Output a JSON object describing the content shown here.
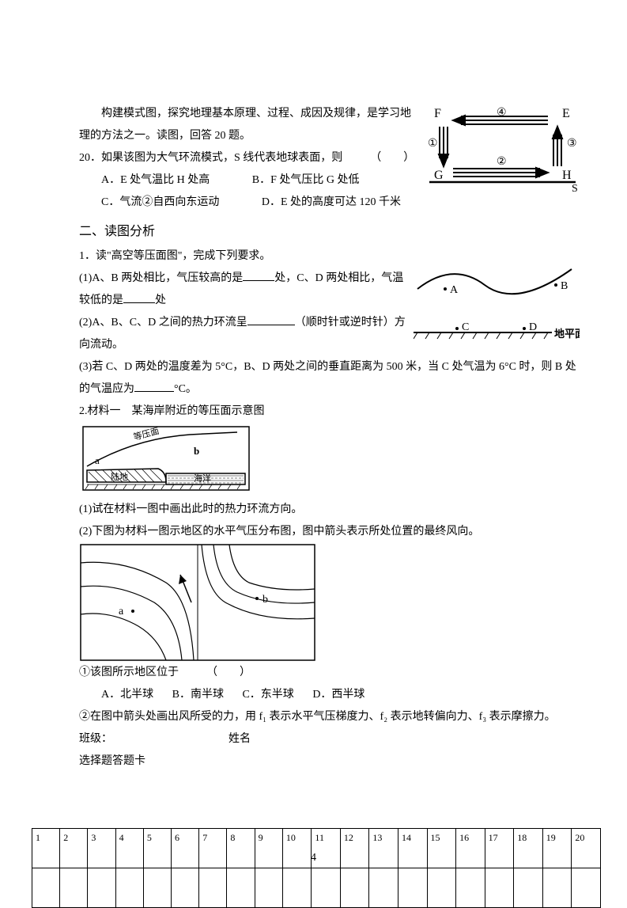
{
  "intro": "构建模式图，探究地理基本原理、过程、成因及规律，是学习地理的方法之一。读图，回答 20 题。",
  "q20": {
    "stem": "20．如果该图为大气环流模式，S 线代表地球表面，则",
    "paren": "（　　）",
    "A": "A．E 处气温比 H 处高",
    "B": "B．F 处气压比 G 处低",
    "C": "C．气流②自西向东运动",
    "D": "D．E 处的高度可达 120 千米"
  },
  "sec2_title": "二、读图分析",
  "p1": {
    "stem": "1．读\"高空等压面图\"，完成下列要求。",
    "l1a": "(1)A、B 两处相比，气压较高的是",
    "l1b": "处，C、D 两处相比，气温较低的是",
    "l1c": "处",
    "l2a": "(2)A、B、C、D 之间的热力环流呈",
    "l2b": "（顺时针或逆时针）方向流动。",
    "l3a": "(3)若 C、D 两处的温度差为 5°C，B、D 两处之间的垂直距离为 500 米，当 C 处气温为 6°C 时，则 B 处的气温应为",
    "l3b": "°C。"
  },
  "p2": {
    "title": "2.材料一　某海岸附近的等压面示意图",
    "q1": "(1)试在材料一图中画出此时的热力环流方向。",
    "q2": "(2)下图为材料一图示地区的水平气压分布图，图中箭头表示所处位置的最终风向。",
    "mc_stem": "①该图所示地区位于",
    "mc_paren": "（　　）",
    "A": "A．北半球",
    "B": "B．南半球",
    "C": "C．东半球",
    "D": "D．西半球",
    "draw": "②在图中箭头处画出风所受的力，用 f₁ 表示水平气压梯度力、f₂ 表示地转偏向力、f₃ 表示摩擦力。"
  },
  "class_label": "班级：",
  "name_label": "姓名",
  "card_title": "选择题答题卡",
  "table_nums": [
    "1",
    "2",
    "3",
    "4",
    "5",
    "6",
    "7",
    "8",
    "9",
    "10",
    "11",
    "12",
    "13",
    "14",
    "15",
    "16",
    "17",
    "18",
    "19",
    "20"
  ],
  "page_number": "4",
  "diagram1": {
    "F": "F",
    "E": "E",
    "G": "G",
    "H": "H",
    "S": "S",
    "n1": "①",
    "n2": "②",
    "n3": "③",
    "n4": "④",
    "stroke": "#000"
  },
  "diagram2": {
    "A": "A",
    "B": "B",
    "C": "C",
    "D": "D",
    "ground": "地平面",
    "stroke": "#000"
  },
  "diagram3": {
    "label_yp": "等压面",
    "a": "a",
    "b": "b",
    "land": "陆地",
    "sea": "海洋",
    "stroke": "#000"
  },
  "diagram4": {
    "a": "a",
    "b": "b",
    "stroke": "#000"
  }
}
